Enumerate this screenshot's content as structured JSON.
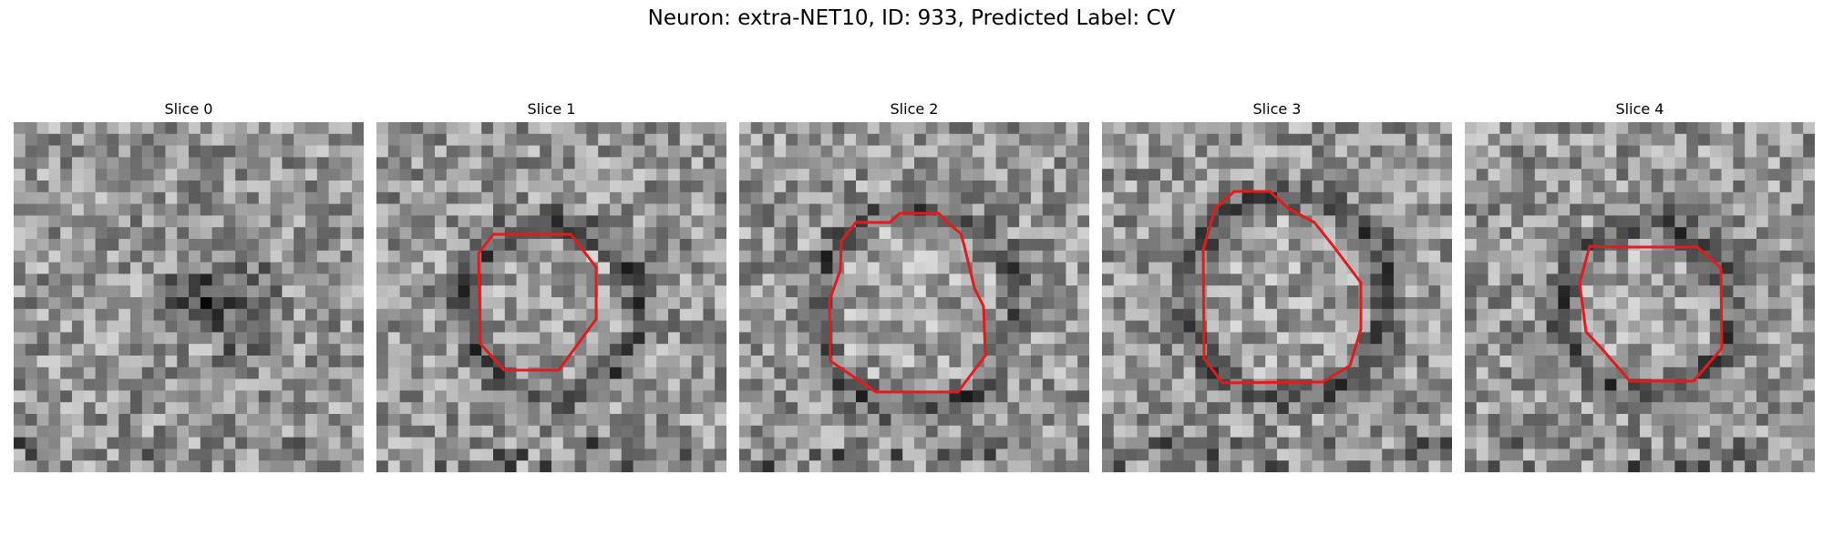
{
  "figure": {
    "title": "Neuron: extra-NET10, ID: 933, Predicted Label: CV"
  },
  "outline_color": "#e41a1c",
  "slices": [
    {
      "label": "Slice 0",
      "has_outline": false
    },
    {
      "label": "Slice 1",
      "has_outline": true
    },
    {
      "label": "Slice 2",
      "has_outline": true
    },
    {
      "label": "Slice 3",
      "has_outline": true
    },
    {
      "label": "Slice 4",
      "has_outline": true
    }
  ]
}
